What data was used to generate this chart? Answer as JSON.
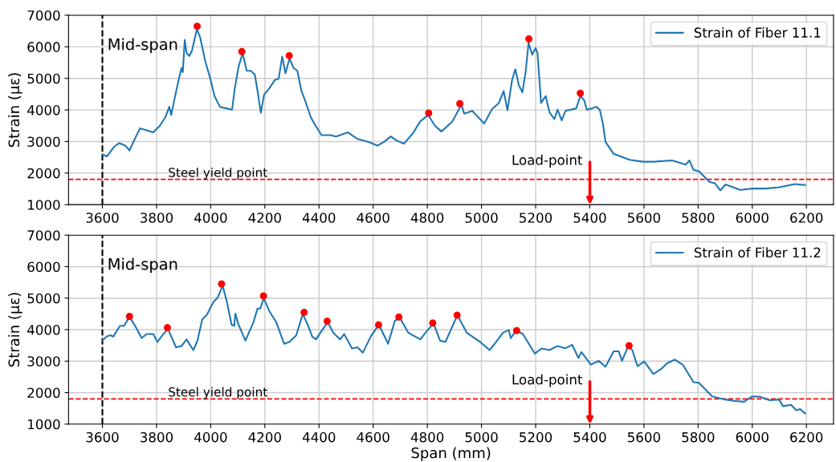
{
  "chart_data": [
    {
      "type": "line",
      "ylabel": "Strain (με)",
      "xlim": [
        3475,
        6300
      ],
      "xticks": [
        3600,
        3800,
        4000,
        4200,
        4400,
        4600,
        4800,
        5000,
        5200,
        5400,
        5600,
        5800,
        6000,
        6200
      ],
      "ylim": [
        1000,
        7000
      ],
      "yticks": [
        1000,
        2000,
        3000,
        4000,
        5000,
        6000,
        7000
      ],
      "grid": true,
      "legend": "top right",
      "series": [
        {
          "name": "Strain of Fiber 11.1",
          "color": "#1f77b4",
          "marker": "none",
          "x": [
            3600,
            3617,
            3644,
            3662,
            3685,
            3700,
            3724,
            3739,
            3754,
            3788,
            3812,
            3832,
            3847,
            3854,
            3877,
            3892,
            3897,
            3904,
            3911,
            3921,
            3931,
            3939,
            3949,
            3961,
            3980,
            4000,
            4014,
            4034,
            4059,
            4079,
            4089,
            4103,
            4118,
            4133,
            4148,
            4163,
            4173,
            4185,
            4197,
            4217,
            4237,
            4251,
            4264,
            4276,
            4291,
            4306,
            4320,
            4335,
            4350,
            4370,
            4384,
            4409,
            4443,
            4463,
            4507,
            4542,
            4581,
            4616,
            4640,
            4665,
            4685,
            4714,
            4749,
            4773,
            4803,
            4828,
            4852,
            4892,
            4916,
            4926,
            4936,
            4966,
            5010,
            5039,
            5064,
            5082,
            5096,
            5113,
            5125,
            5138,
            5151,
            5163,
            5174,
            5187,
            5200,
            5207,
            5220,
            5237,
            5251,
            5269,
            5281,
            5296,
            5310,
            5350,
            5365,
            5379,
            5389,
            5409,
            5424,
            5437,
            5448,
            5458,
            5488,
            5547,
            5596,
            5636,
            5704,
            5754,
            5768,
            5783,
            5803,
            5842,
            5862,
            5882,
            5901,
            5956,
            6000,
            6049,
            6099,
            6158,
            6195
          ],
          "values": [
            2590,
            2530,
            2840,
            2950,
            2870,
            2720,
            3160,
            3420,
            3380,
            3290,
            3500,
            3760,
            4100,
            3840,
            4780,
            5330,
            5200,
            6220,
            5800,
            5710,
            5880,
            6180,
            6560,
            6300,
            5540,
            4950,
            4440,
            4100,
            4050,
            4010,
            4690,
            5370,
            5800,
            5240,
            5240,
            5120,
            4600,
            3910,
            4480,
            4690,
            4950,
            4990,
            5690,
            5160,
            5630,
            5330,
            5240,
            4600,
            4270,
            3760,
            3550,
            3200,
            3200,
            3160,
            3290,
            3080,
            2990,
            2870,
            2990,
            3160,
            3040,
            2930,
            3290,
            3630,
            3840,
            3500,
            3320,
            3630,
            4010,
            4180,
            3880,
            3970,
            3570,
            4030,
            4220,
            4600,
            3990,
            4950,
            5290,
            4780,
            4560,
            5200,
            6130,
            5750,
            5960,
            5790,
            4220,
            4440,
            3930,
            3710,
            4010,
            3670,
            3970,
            4050,
            4440,
            4310,
            4010,
            4050,
            4100,
            4010,
            3590,
            2990,
            2610,
            2420,
            2360,
            2360,
            2400,
            2270,
            2400,
            2100,
            2060,
            1720,
            1680,
            1450,
            1640,
            1470,
            1510,
            1510,
            1550,
            1650,
            1620
          ]
        },
        {
          "color": "#ff0000",
          "type": "scatter",
          "marker": "circle",
          "x": [
            3950,
            4115,
            4290,
            4805,
            4920,
            5175,
            5365
          ],
          "values": [
            6650,
            5850,
            5720,
            3900,
            4200,
            6250,
            4530
          ]
        }
      ],
      "ref_lines": [
        {
          "axis": "x",
          "value": 3600,
          "label": "Mid-span",
          "color": "#000000",
          "line_style": "dashed"
        },
        {
          "axis": "y",
          "value": 1800,
          "label": "Steel yield point",
          "color": "#ff0000",
          "line_style": "dashed"
        }
      ],
      "annotations": [
        "Load-point"
      ]
    },
    {
      "type": "line",
      "ylabel": "Strain (με)",
      "xlabel": "Span (mm)",
      "xlim": [
        3475,
        6300
      ],
      "xticks": [
        3600,
        3800,
        4000,
        4200,
        4400,
        4600,
        4800,
        5000,
        5200,
        5400,
        5600,
        5800,
        6000,
        6200
      ],
      "ylim": [
        1000,
        7000
      ],
      "yticks": [
        1000,
        2000,
        3000,
        4000,
        5000,
        6000,
        7000
      ],
      "grid": true,
      "legend": "top right",
      "series": [
        {
          "name": "Strain of Fiber 11.2",
          "color": "#1f77b4",
          "marker": "none",
          "x": [
            3600,
            3615,
            3630,
            3640,
            3665,
            3680,
            3700,
            3724,
            3745,
            3763,
            3788,
            3803,
            3818,
            3842,
            3872,
            3892,
            3911,
            3926,
            3936,
            3951,
            3969,
            3985,
            4010,
            4025,
            4044,
            4059,
            4077,
            4087,
            4091,
            4101,
            4128,
            4158,
            4173,
            4183,
            4196,
            4217,
            4242,
            4271,
            4291,
            4316,
            4340,
            4360,
            4375,
            4389,
            4409,
            4432,
            4453,
            4478,
            4493,
            4522,
            4542,
            4562,
            4591,
            4621,
            4640,
            4655,
            4680,
            4699,
            4730,
            4774,
            4798,
            4823,
            4847,
            4867,
            4911,
            4946,
            4995,
            5030,
            5054,
            5079,
            5101,
            5108,
            5128,
            5153,
            5197,
            5222,
            5251,
            5281,
            5310,
            5335,
            5358,
            5369,
            5404,
            5433,
            5458,
            5488,
            5507,
            5519,
            5542,
            5557,
            5576,
            5601,
            5635,
            5665,
            5685,
            5714,
            5744,
            5783,
            5803,
            5852,
            5901,
            5931,
            5970,
            6000,
            6029,
            6064,
            6099,
            6113,
            6143,
            6163,
            6177,
            6195
          ],
          "values": [
            3650,
            3780,
            3820,
            3780,
            4120,
            4120,
            4410,
            4070,
            3730,
            3860,
            3860,
            3610,
            3780,
            4030,
            3440,
            3480,
            3690,
            3480,
            3350,
            3650,
            4330,
            4460,
            4880,
            5010,
            5390,
            4920,
            4160,
            4120,
            4510,
            4200,
            3650,
            4240,
            4670,
            4670,
            4990,
            4580,
            4240,
            3550,
            3610,
            3820,
            4500,
            4120,
            3780,
            3690,
            3950,
            4240,
            3900,
            3690,
            3860,
            3400,
            3440,
            3270,
            3780,
            4160,
            3820,
            3550,
            4280,
            4370,
            3900,
            3690,
            3950,
            4200,
            3650,
            3610,
            4460,
            3900,
            3610,
            3350,
            3610,
            3900,
            3990,
            3730,
            3970,
            3860,
            3240,
            3400,
            3350,
            3480,
            3410,
            3520,
            3100,
            3290,
            2890,
            3010,
            2820,
            3310,
            3310,
            3010,
            3480,
            3350,
            2840,
            2990,
            2590,
            2760,
            2930,
            3050,
            2880,
            2330,
            2310,
            1880,
            1780,
            1740,
            1710,
            1880,
            1870,
            1760,
            1780,
            1570,
            1610,
            1440,
            1480,
            1340
          ]
        },
        {
          "color": "#ff0000",
          "type": "scatter",
          "marker": "circle",
          "x": [
            3700,
            3840,
            4040,
            4195,
            4345,
            4430,
            4620,
            4695,
            4820,
            4910,
            5130,
            5545
          ],
          "values": [
            4420,
            4060,
            5450,
            5070,
            4550,
            4270,
            4150,
            4400,
            4210,
            4460,
            3970,
            3490
          ]
        }
      ],
      "ref_lines": [
        {
          "axis": "x",
          "value": 3600,
          "label": "Mid-span",
          "color": "#000000",
          "line_style": "dashed"
        },
        {
          "axis": "y",
          "value": 1800,
          "label": "Steel yield point",
          "color": "#ff0000",
          "line_style": "dashed"
        }
      ],
      "annotations": [
        "Load-point"
      ]
    }
  ]
}
